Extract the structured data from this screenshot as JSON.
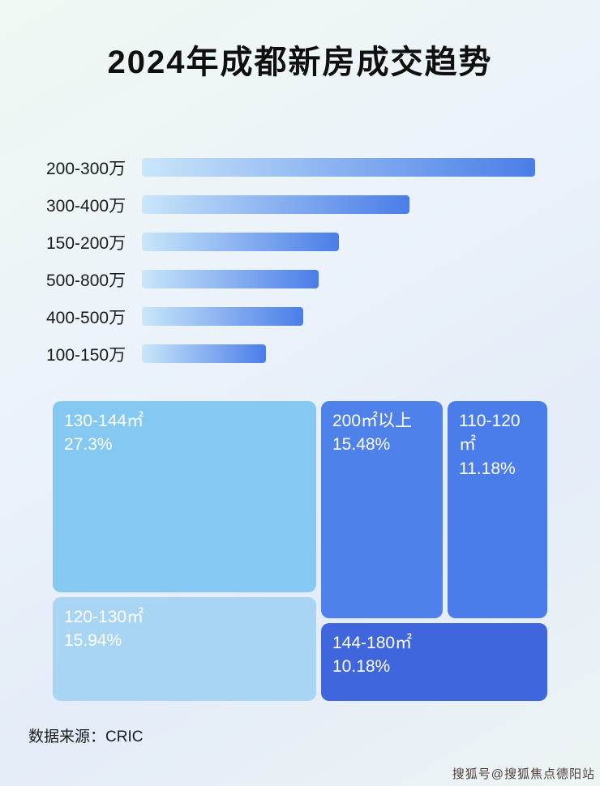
{
  "title": "2024年成都新房成交趋势",
  "colors": {
    "bar_start": "#c9e6fa",
    "bar_end": "#4a7de8"
  },
  "chart_data": [
    {
      "type": "bar",
      "orientation": "horizontal",
      "title": "2024年成都新房成交趋势",
      "note": "no axis or value labels shown; values are relative bar lengths in percent of longest bar",
      "categories": [
        "200-300万",
        "300-400万",
        "150-200万",
        "500-800万",
        "400-500万",
        "100-150万"
      ],
      "values": [
        100,
        68,
        50,
        45,
        41,
        31.5
      ],
      "legend": "none",
      "grid": false
    },
    {
      "type": "treemap",
      "note": "share of transactions by floor-area segment",
      "items": [
        {
          "label": "130-144㎡",
          "value": "27.3%",
          "color": "#85c8f1"
        },
        {
          "label": "200㎡以上",
          "value": "15.48%",
          "color": "#4e81e9"
        },
        {
          "label": "110-120㎡",
          "value": "11.18%",
          "color": "#4a7de9"
        },
        {
          "label": "120-130㎡",
          "value": "15.94%",
          "color": "#a7d5f3"
        },
        {
          "label": "144-180㎡",
          "value": "10.18%",
          "color": "#3f66dd"
        }
      ]
    }
  ],
  "footer": {
    "source_label": "数据来源：CRIC"
  },
  "watermark": {
    "text": "搜狐号@搜狐焦点德阳站"
  }
}
